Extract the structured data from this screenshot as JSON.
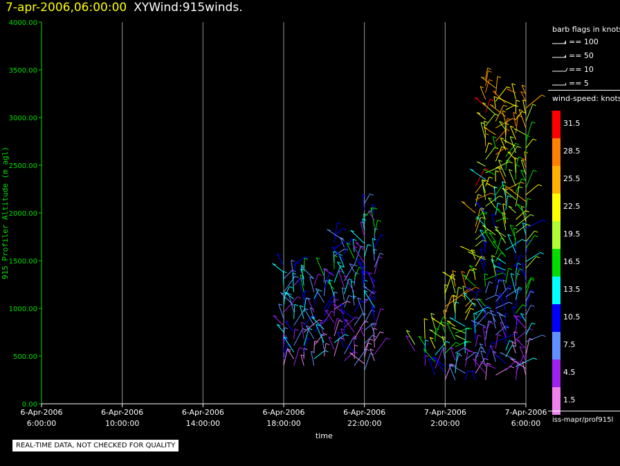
{
  "header": {
    "time_label": "7-apr-2006,06:00:00",
    "plot_name": "XYWind:915winds."
  },
  "legend": {
    "barb_title": "barb flags in knots",
    "barbs": [
      "== 100",
      "== 50",
      "== 10",
      "== 5"
    ],
    "speed_title": "wind-speed: knots",
    "speed_levels": [
      {
        "label": "31.5",
        "color": "#ff0000"
      },
      {
        "label": "28.5",
        "color": "#ff8000"
      },
      {
        "label": "25.5",
        "color": "#ffb000"
      },
      {
        "label": "22.5",
        "color": "#ffff00"
      },
      {
        "label": "19.5",
        "color": "#b0ff30"
      },
      {
        "label": "16.5",
        "color": "#00dd00"
      },
      {
        "label": "13.5",
        "color": "#00ffff"
      },
      {
        "label": "10.5",
        "color": "#0000ff"
      },
      {
        "label": "7.5",
        "color": "#6090ff"
      },
      {
        "label": "4.5",
        "color": "#a020f0"
      },
      {
        "label": "1.5",
        "color": "#ee82ee"
      }
    ],
    "source": "iss-mapr/prof915l"
  },
  "notice": "REAL-TIME DATA, NOT CHECKED FOR QUALITY",
  "chart_data": {
    "type": "scatter",
    "xlabel": "time",
    "ylabel": "915 Profiler Altitude (m agl)",
    "ylim": [
      0,
      4000
    ],
    "yticks": [
      "0.00",
      "500.00",
      "1000.00",
      "1500.00",
      "2000.00",
      "2500.00",
      "3000.00",
      "3500.00",
      "4000.00"
    ],
    "xticks": [
      [
        "6-Apr-2006",
        "6:00:00"
      ],
      [
        "6-Apr-2006",
        "10:00:00"
      ],
      [
        "6-Apr-2006",
        "14:00:00"
      ],
      [
        "6-Apr-2006",
        "18:00:00"
      ],
      [
        "6-Apr-2006",
        "22:00:00"
      ],
      [
        "7-Apr-2006",
        "2:00:00"
      ],
      [
        "7-Apr-2006",
        "6:00:00"
      ]
    ],
    "grid": true,
    "profiles": [
      {
        "time": "6-Apr-2006 18:00",
        "top": 1500,
        "bottom": 400
      },
      {
        "time": "6-Apr-2006 18:30",
        "top": 1450,
        "bottom": 400
      },
      {
        "time": "6-Apr-2006 19:00",
        "top": 1400,
        "bottom": 400
      },
      {
        "time": "6-Apr-2006 19:30",
        "top": 1350,
        "bottom": 400
      },
      {
        "time": "6-Apr-2006 20:00",
        "top": 1400,
        "bottom": 500
      },
      {
        "time": "6-Apr-2006 20:30",
        "top": 1800,
        "bottom": 500
      },
      {
        "time": "6-Apr-2006 21:00",
        "top": 1750,
        "bottom": 450
      },
      {
        "time": "6-Apr-2006 21:30",
        "top": 1600,
        "bottom": 400
      },
      {
        "time": "6-Apr-2006 22:00",
        "top": 2150,
        "bottom": 350
      },
      {
        "time": "6-Apr-2006 22:30",
        "top": 2000,
        "bottom": 450
      },
      {
        "time": "7-Apr-2006 0:30",
        "top": 650,
        "bottom": 550
      },
      {
        "time": "7-Apr-2006 1:00",
        "top": 700,
        "bottom": 400
      },
      {
        "time": "7-Apr-2006 1:30",
        "top": 850,
        "bottom": 300
      },
      {
        "time": "7-Apr-2006 2:00",
        "top": 1200,
        "bottom": 250
      },
      {
        "time": "7-Apr-2006 2:30",
        "top": 1300,
        "bottom": 250
      },
      {
        "time": "7-Apr-2006 3:00",
        "top": 1300,
        "bottom": 250
      },
      {
        "time": "7-Apr-2006 3:30",
        "top": 2300,
        "bottom": 250
      },
      {
        "time": "7-Apr-2006 4:00",
        "top": 3450,
        "bottom": 250
      },
      {
        "time": "7-Apr-2006 4:30",
        "top": 3350,
        "bottom": 300
      },
      {
        "time": "7-Apr-2006 5:00",
        "top": 3200,
        "bottom": 350
      },
      {
        "time": "7-Apr-2006 5:30",
        "top": 3300,
        "bottom": 250
      },
      {
        "time": "7-Apr-2006 6:00",
        "top": 3300,
        "bottom": 300
      }
    ]
  }
}
